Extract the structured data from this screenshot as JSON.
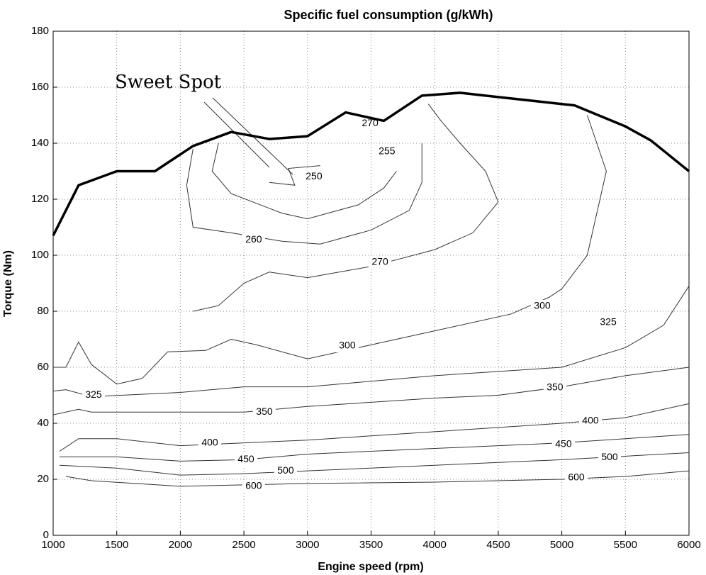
{
  "chart_data": {
    "type": "contour",
    "title": "Specific fuel consumption (g/kWh)",
    "x_label": "Engine speed (rpm)",
    "y_label": "Torque (Nm)",
    "xlim": [
      1000,
      6000
    ],
    "ylim": [
      0,
      180
    ],
    "xticks": [
      1000,
      1500,
      2000,
      2500,
      3000,
      3500,
      4000,
      4500,
      5000,
      5500,
      6000
    ],
    "yticks": [
      0,
      20,
      40,
      60,
      80,
      100,
      120,
      140,
      160,
      180
    ],
    "grid": true,
    "annotation": "Sweet Spot",
    "series": [
      {
        "x": [
          1000,
          1200,
          1500,
          1800,
          2100,
          2400,
          2700,
          3000,
          3300,
          3600,
          3900,
          4200,
          4500,
          5000,
          5100,
          5500,
          5700,
          6000
        ],
        "values": [
          107,
          125,
          130,
          130,
          139,
          144,
          141.5,
          142.5,
          151,
          148,
          157,
          158,
          156.5,
          154,
          153.5,
          146,
          141,
          130
        ],
        "color": "#000000"
      }
    ],
    "contours": [
      {
        "x": [
          1100,
          1300,
          2000,
          2500,
          3000,
          4000,
          5000,
          5500,
          6000
        ],
        "y": [
          21,
          19.5,
          17.5,
          18,
          18.5,
          19,
          20,
          21,
          23
        ]
      },
      {
        "x": [
          1050,
          1500,
          2000,
          2500,
          3000,
          4000,
          5000,
          6000
        ],
        "y": [
          25,
          24,
          21.5,
          22,
          23,
          25,
          27,
          29.5
        ]
      },
      {
        "x": [
          1050,
          1500,
          2000,
          2500,
          3000,
          4000,
          5000,
          6000
        ],
        "y": [
          28,
          28,
          26.5,
          27,
          29,
          31,
          33,
          36
        ]
      },
      {
        "x": [
          1050,
          1200,
          1500,
          2000,
          3000,
          4000,
          5000,
          5500,
          6000
        ],
        "y": [
          30,
          34.5,
          34.5,
          32,
          34,
          37,
          40,
          42,
          47
        ]
      },
      {
        "x": [
          1000,
          1200,
          1300,
          2000,
          2500,
          3000,
          4000,
          4500,
          5000,
          5500,
          6000
        ],
        "y": [
          43,
          45,
          44,
          44,
          44,
          46,
          49,
          50,
          53,
          57,
          60
        ]
      },
      {
        "x": [
          1000,
          1100,
          1300,
          2000,
          2500,
          3000,
          4000,
          5000,
          5500,
          5800,
          6000
        ],
        "y": [
          51.5,
          52,
          49.5,
          51,
          53,
          53,
          57,
          60,
          67,
          75,
          89
        ]
      },
      {
        "x": [
          1000,
          1100,
          1200,
          1300,
          1500,
          1700,
          1900,
          2200,
          2400,
          2600,
          3000,
          3500,
          4000,
          4600,
          4900,
          5000,
          5200,
          5350,
          5200
        ],
        "y": [
          60,
          60,
          69,
          61,
          54,
          56,
          65.5,
          66,
          70,
          68,
          63,
          68,
          73,
          79,
          85,
          88,
          100,
          130,
          150
        ]
      },
      {
        "x": [
          2100,
          2300,
          2500,
          2700,
          3000,
          3500,
          4000,
          4300,
          4500,
          4400,
          4200,
          4050,
          3950
        ],
        "y": [
          80,
          82,
          90,
          94,
          92,
          96,
          102,
          108,
          119,
          130,
          140,
          148,
          154
        ]
      },
      {
        "x": [
          2100,
          2050,
          2100,
          2400,
          2800,
          3100,
          3500,
          3800,
          3900,
          3900
        ],
        "y": [
          138,
          125,
          110,
          108,
          105,
          104,
          109,
          116,
          126,
          140
        ]
      },
      {
        "x": [
          2300,
          2250,
          2400,
          2800,
          3000,
          3400,
          3600,
          3700
        ],
        "y": [
          140,
          130,
          122,
          115,
          113,
          118,
          124,
          130
        ]
      },
      {
        "x": [
          2700,
          2900,
          2850,
          3100
        ],
        "y": [
          126,
          125,
          131,
          132
        ]
      }
    ],
    "contour_labels": [
      {
        "level": 270,
        "x": 3492,
        "y": 147
      },
      {
        "level": 255,
        "x": 3625,
        "y": 137
      },
      {
        "level": 250,
        "x": 3051,
        "y": 128
      },
      {
        "level": 260,
        "x": 2577,
        "y": 105.5
      },
      {
        "level": 270,
        "x": 3570,
        "y": 97.5
      },
      {
        "level": 300,
        "x": 3313,
        "y": 67.6
      },
      {
        "level": 300,
        "x": 4846,
        "y": 81.8
      },
      {
        "level": 325,
        "x": 5365,
        "y": 76
      },
      {
        "level": 325,
        "x": 1318,
        "y": 50
      },
      {
        "level": 350,
        "x": 2661,
        "y": 44
      },
      {
        "level": 350,
        "x": 4946,
        "y": 52.7
      },
      {
        "level": 400,
        "x": 2232,
        "y": 33
      },
      {
        "level": 400,
        "x": 5225,
        "y": 40.8
      },
      {
        "level": 450,
        "x": 2516,
        "y": 27
      },
      {
        "level": 450,
        "x": 5013,
        "y": 32.4
      },
      {
        "level": 500,
        "x": 2828,
        "y": 23
      },
      {
        "level": 500,
        "x": 5376,
        "y": 27.8
      },
      {
        "level": 600,
        "x": 2577,
        "y": 17.5
      },
      {
        "level": 600,
        "x": 5114,
        "y": 20.5
      }
    ]
  }
}
